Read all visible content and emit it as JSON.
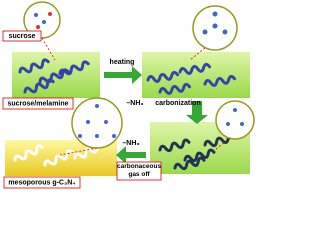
{
  "labels": {
    "sucrose": "sucrose",
    "heating": "heating",
    "sucrose_melamine": "sucrose/melamine",
    "nh3_top": "–NH₃",
    "carbonization": "carbonization",
    "nh3_bottom": "–NH₃",
    "gas_off": "carbonaceous gas off",
    "product": "mesoporous g-C₃N₄"
  }
}
